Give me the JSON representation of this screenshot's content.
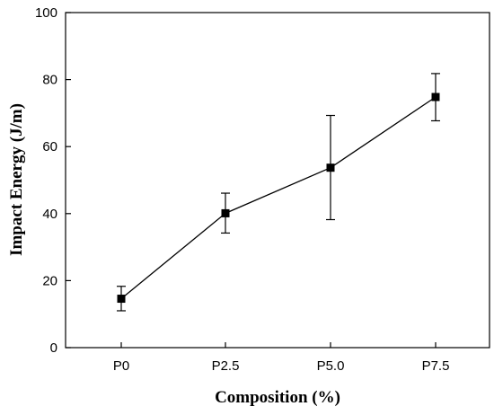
{
  "chart_data": {
    "type": "line",
    "title": "",
    "xlabel": "Composition (%)",
    "ylabel": "Impact Energy (J/m)",
    "categories": [
      "P0",
      "P2.5",
      "P5.0",
      "P7.5"
    ],
    "series": [
      {
        "values": [
          14.6,
          40.1,
          53.7,
          74.8
        ],
        "error_low": [
          11.0,
          34.2,
          38.2,
          67.7
        ],
        "error_high": [
          18.3,
          46.1,
          69.3,
          81.8
        ],
        "color": "#000000",
        "marker": "square"
      }
    ],
    "ylim": [
      0,
      100
    ],
    "yticks": [
      0,
      20,
      40,
      60,
      80,
      100
    ],
    "grid": false,
    "legend": "none"
  }
}
